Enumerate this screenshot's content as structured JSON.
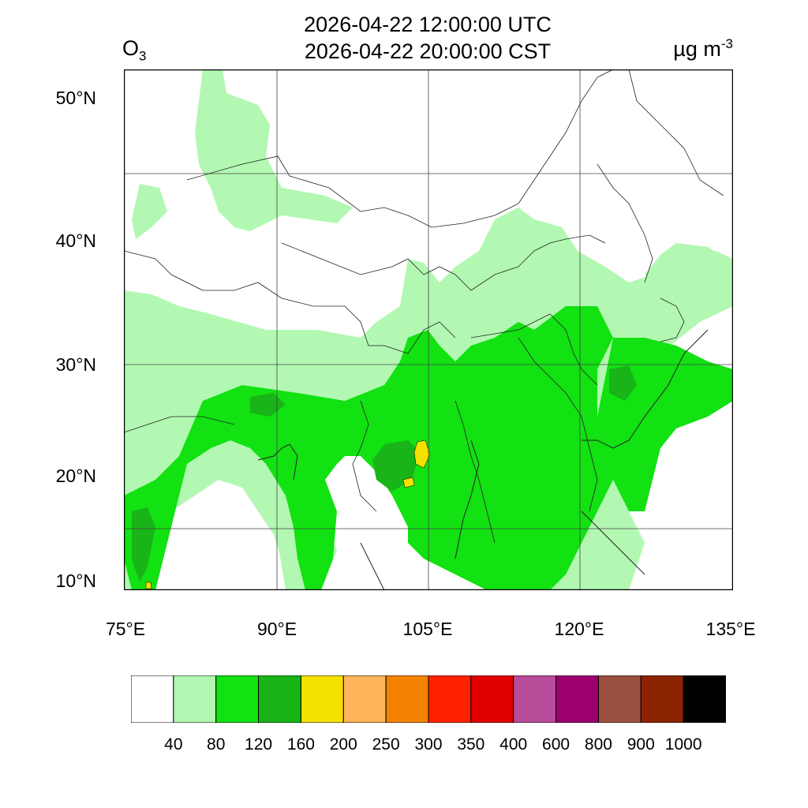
{
  "header": {
    "line1": "2026-04-22 12:00:00 UTC",
    "line2": "2026-04-22 20:00:00 CST",
    "species": "O",
    "species_sub": "3",
    "units": "µg m",
    "units_sup": "-3"
  },
  "axes": {
    "lat_labels": [
      "50°N",
      "40°N",
      "30°N",
      "20°N",
      "10°N"
    ],
    "lon_labels": [
      "75°E",
      "90°E",
      "105°E",
      "120°E",
      "135°E"
    ]
  },
  "legend": {
    "bins": [
      "40",
      "80",
      "120",
      "160",
      "200",
      "250",
      "300",
      "350",
      "400",
      "600",
      "800",
      "900",
      "1000"
    ],
    "colors": [
      "#ffffff",
      "#b2f8b2",
      "#12e112",
      "#18b418",
      "#f5e100",
      "#ffb45a",
      "#f58200",
      "#ff2100",
      "#e10000",
      "#b94b9b",
      "#9b006e",
      "#9b5041",
      "#8c2300",
      "#000000"
    ]
  },
  "map_data": {
    "field": "O3",
    "concentration_range_visible": "mostly 40–160 µg m-3 with small 160–200 patches"
  }
}
